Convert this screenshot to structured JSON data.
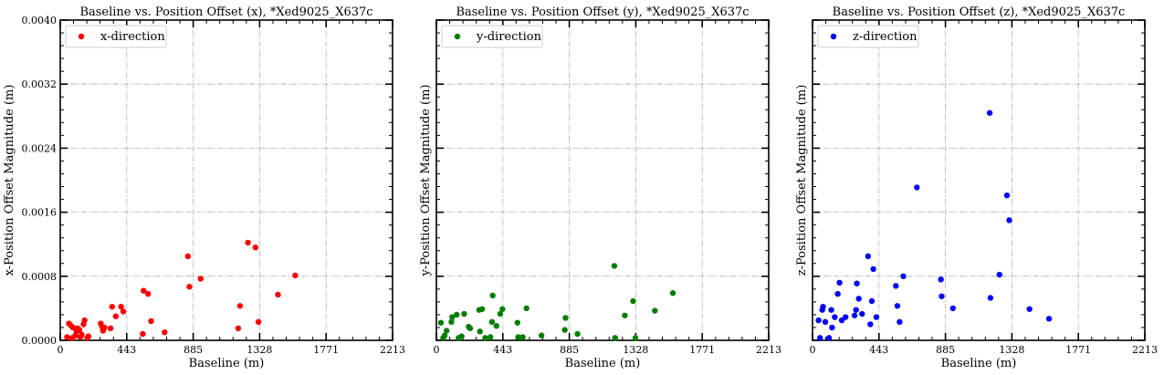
{
  "chart_data": [
    {
      "type": "scatter",
      "title": "Baseline vs. Position Offset (x), *Xed9025_X637c",
      "xlabel": "Baseline (m)",
      "ylabel": "x-Position Offset Magnitude (m)",
      "xlim": [
        0,
        2213
      ],
      "ylim": [
        0,
        0.004
      ],
      "xticks": [
        "0",
        "443",
        "885",
        "1328",
        "1771",
        "2213"
      ],
      "yticks": [
        "0.0000",
        "0.0008",
        "0.0016",
        "0.0024",
        "0.0032",
        "0.0040"
      ],
      "show_ytick_labels": true,
      "grid": true,
      "legend": "top-left",
      "series": [
        {
          "name": "x-direction",
          "color": "#ff0000",
          "points": [
            [
              45,
              4e-05
            ],
            [
              58,
              0.00021
            ],
            [
              73,
              0.00018
            ],
            [
              80,
              3e-05
            ],
            [
              85,
              0.00016
            ],
            [
              100,
              6e-05
            ],
            [
              108,
              0.00011
            ],
            [
              115,
              0.00015
            ],
            [
              128,
              0.00013
            ],
            [
              133,
              4e-05
            ],
            [
              143,
              7e-05
            ],
            [
              155,
              0.0002
            ],
            [
              162,
              0.00025
            ],
            [
              180,
              3e-05
            ],
            [
              188,
              5e-05
            ],
            [
              270,
              0.00021
            ],
            [
              278,
              0.00017
            ],
            [
              285,
              0.00012
            ],
            [
              295,
              0.00016
            ],
            [
              335,
              0.00015
            ],
            [
              345,
              0.00042
            ],
            [
              370,
              0.0003
            ],
            [
              405,
              0.00042
            ],
            [
              420,
              0.00036
            ],
            [
              550,
              8e-05
            ],
            [
              555,
              0.00062
            ],
            [
              585,
              0.00058
            ],
            [
              605,
              0.00024
            ],
            [
              695,
              0.0001
            ],
            [
              850,
              0.00105
            ],
            [
              860,
              0.00067
            ],
            [
              935,
              0.00077
            ],
            [
              1185,
              0.00015
            ],
            [
              1197,
              0.00043
            ],
            [
              1250,
              0.00122
            ],
            [
              1300,
              0.00116
            ],
            [
              1320,
              0.00023
            ],
            [
              1450,
              0.00057
            ],
            [
              1565,
              0.00081
            ]
          ]
        }
      ]
    },
    {
      "type": "scatter",
      "title": "Baseline vs. Position Offset (y), *Xed9025_X637c",
      "xlabel": "Baseline (m)",
      "ylabel": "y-Position Offset Magnitude (m)",
      "xlim": [
        0,
        2213
      ],
      "ylim": [
        0,
        0.004
      ],
      "xticks": [
        "0",
        "443",
        "885",
        "1328",
        "1771",
        "2213"
      ],
      "yticks": [
        "0.0000",
        "0.0008",
        "0.0016",
        "0.0024",
        "0.0032",
        "0.0040"
      ],
      "show_ytick_labels": false,
      "grid": true,
      "legend": "top-left",
      "series": [
        {
          "name": "y-direction",
          "color": "#008000",
          "points": [
            [
              30,
              0.00022
            ],
            [
              45,
              3e-05
            ],
            [
              55,
              6e-05
            ],
            [
              68,
              0.00012
            ],
            [
              100,
              0.00023
            ],
            [
              105,
              0.00029
            ],
            [
              135,
              0.00032
            ],
            [
              148,
              3e-05
            ],
            [
              168,
              5e-05
            ],
            [
              185,
              0.00033
            ],
            [
              215,
              0.00017
            ],
            [
              225,
              0.00015
            ],
            [
              285,
              0.00038
            ],
            [
              290,
              0.00011
            ],
            [
              305,
              0.00039
            ],
            [
              325,
              3e-05
            ],
            [
              360,
              4e-05
            ],
            [
              370,
              0.00023
            ],
            [
              375,
              0.00056
            ],
            [
              400,
              0.00018
            ],
            [
              425,
              0.00033
            ],
            [
              440,
              0.00039
            ],
            [
              540,
              0.00022
            ],
            [
              545,
              4e-05
            ],
            [
              575,
              4e-05
            ],
            [
              600,
              0.0004
            ],
            [
              700,
              6e-05
            ],
            [
              855,
              0.00013
            ],
            [
              860,
              0.00028
            ],
            [
              940,
              8e-05
            ],
            [
              1185,
              0.00093
            ],
            [
              1190,
              3e-05
            ],
            [
              1255,
              0.00031
            ],
            [
              1310,
              0.00049
            ],
            [
              1325,
              3e-05
            ],
            [
              1455,
              0.00037
            ],
            [
              1575,
              0.00059
            ]
          ]
        }
      ]
    },
    {
      "type": "scatter",
      "title": "Baseline vs. Position Offset (z), *Xed9025_X637c",
      "xlabel": "Baseline (m)",
      "ylabel": "z-Position Offset Magnitude (m)",
      "xlim": [
        0,
        2213
      ],
      "ylim": [
        0,
        0.004
      ],
      "xticks": [
        "0",
        "443",
        "885",
        "1328",
        "1771",
        "2213"
      ],
      "yticks": [
        "0.0000",
        "0.0008",
        "0.0016",
        "0.0024",
        "0.0032",
        "0.0040"
      ],
      "show_ytick_labels": false,
      "grid": true,
      "legend": "top-left",
      "series": [
        {
          "name": "z-direction",
          "color": "#0000ff",
          "points": [
            [
              40,
              0.00025
            ],
            [
              50,
              3e-05
            ],
            [
              65,
              0.00038
            ],
            [
              70,
              0.00042
            ],
            [
              85,
              0.00023
            ],
            [
              110,
              3e-05
            ],
            [
              125,
              0.00038
            ],
            [
              130,
              0.00016
            ],
            [
              148,
              0.00029
            ],
            [
              168,
              0.00058
            ],
            [
              180,
              0.00072
            ],
            [
              195,
              0.00025
            ],
            [
              220,
              0.00029
            ],
            [
              280,
              0.00031
            ],
            [
              290,
              0.00038
            ],
            [
              295,
              0.00071
            ],
            [
              308,
              0.00052
            ],
            [
              330,
              0.00033
            ],
            [
              370,
              0.00105
            ],
            [
              385,
              0.0002
            ],
            [
              395,
              0.00049
            ],
            [
              405,
              0.00089
            ],
            [
              425,
              0.00029
            ],
            [
              555,
              0.00068
            ],
            [
              565,
              0.00043
            ],
            [
              580,
              0.00023
            ],
            [
              605,
              0.0008
            ],
            [
              695,
              0.00191
            ],
            [
              855,
              0.00076
            ],
            [
              860,
              0.00055
            ],
            [
              935,
              0.0004
            ],
            [
              1180,
              0.00284
            ],
            [
              1185,
              0.00053
            ],
            [
              1245,
              0.00082
            ],
            [
              1295,
              0.00181
            ],
            [
              1310,
              0.0015
            ],
            [
              1445,
              0.00039
            ],
            [
              1575,
              0.00027
            ]
          ]
        }
      ]
    }
  ]
}
